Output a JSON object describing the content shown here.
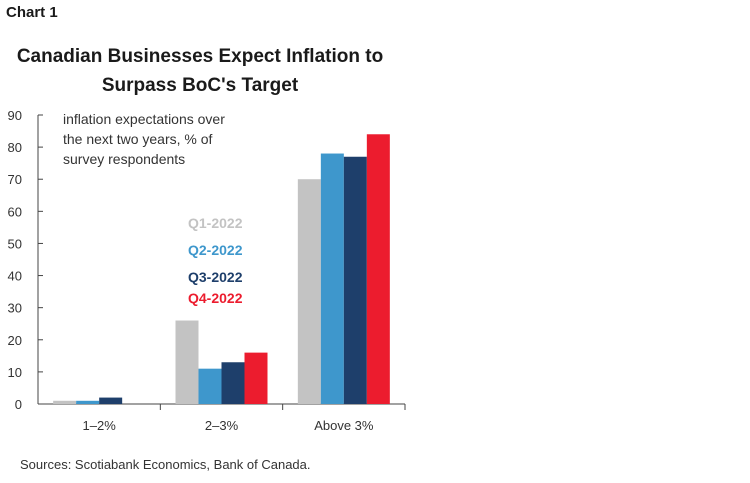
{
  "header": {
    "chart_label": "Chart 1",
    "title_line1": "Canadian Businesses Expect Inflation to",
    "title_line2": "Surpass BoC's Target"
  },
  "note": "inflation expectations over\nthe next two years, % of\nsurvey respondents",
  "source": "Sources: Scotiabank Economics, Bank of Canada.",
  "chart_data": {
    "type": "bar",
    "title": "Canadian Businesses Expect Inflation to Surpass BoC's Target",
    "ylabel": "inflation expectations over the next two years, % of survey respondents",
    "categories": [
      "1–2%",
      "2–3%",
      "Above 3%"
    ],
    "series": [
      {
        "name": "Q1-2022",
        "color": "#c3c3c3",
        "values": [
          1,
          26,
          70
        ]
      },
      {
        "name": "Q2-2022",
        "color": "#3e97cc",
        "values": [
          1,
          11,
          78
        ]
      },
      {
        "name": "Q3-2022",
        "color": "#1e3f6b",
        "values": [
          2,
          13,
          77
        ]
      },
      {
        "name": "Q4-2022",
        "color": "#ec1c2e",
        "values": [
          0,
          16,
          84
        ]
      }
    ],
    "ylim": [
      0,
      90
    ],
    "yticks": [
      0,
      10,
      20,
      30,
      40,
      50,
      60,
      70,
      80,
      90
    ],
    "grid": false,
    "legend": "inside-left"
  }
}
